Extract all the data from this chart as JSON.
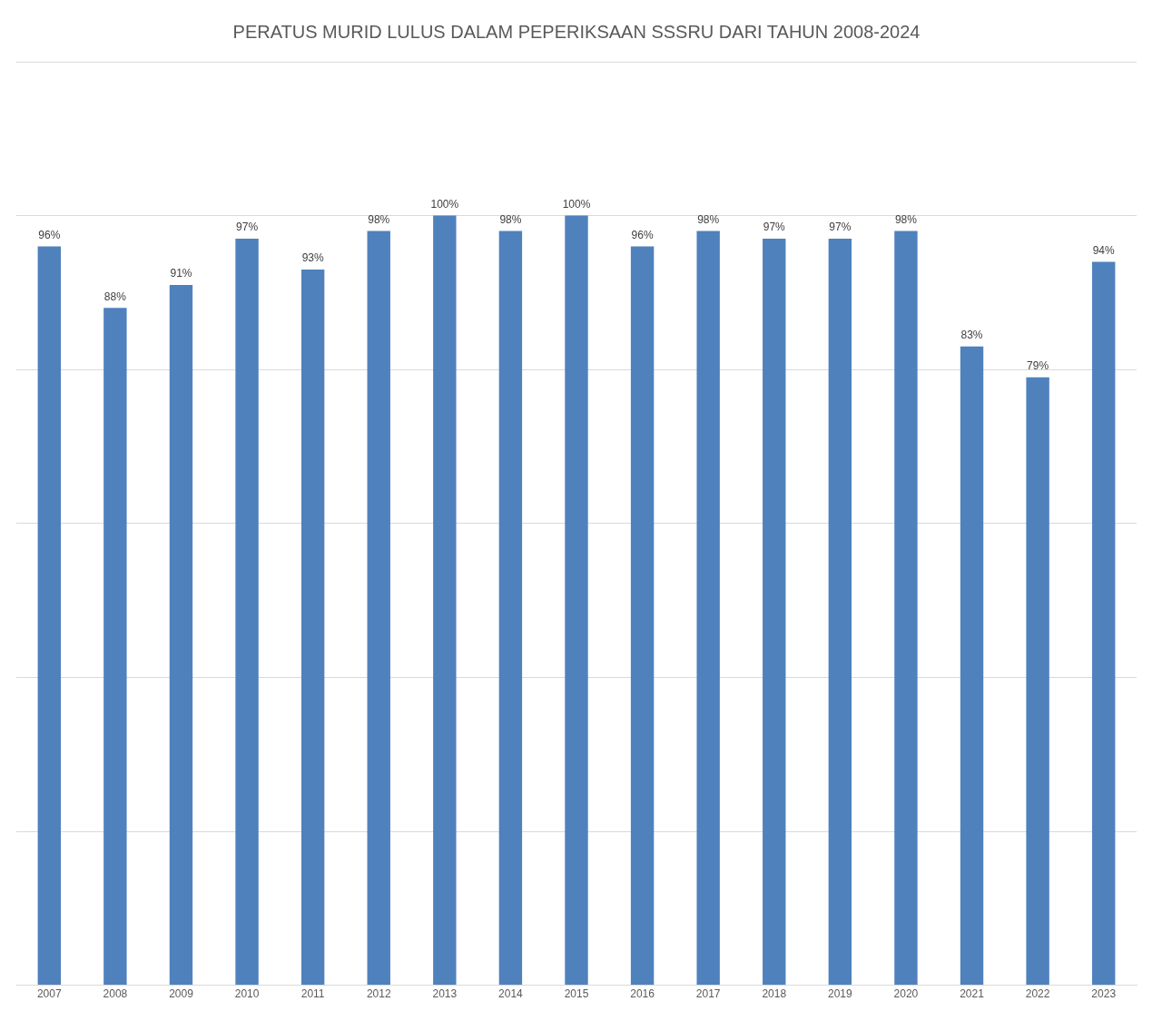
{
  "chart_data": {
    "type": "bar",
    "title": "PERATUS MURID LULUS DALAM PEPERIKSAAN SSSRU DARI TAHUN 2008-2024",
    "categories": [
      "2007",
      "2008",
      "2009",
      "2010",
      "2011",
      "2012",
      "2013",
      "2014",
      "2015",
      "2016",
      "2017",
      "2018",
      "2019",
      "2020",
      "2021",
      "2022",
      "2023"
    ],
    "values": [
      96,
      88,
      91,
      97,
      93,
      98,
      100,
      98,
      100,
      96,
      98,
      97,
      97,
      98,
      83,
      79,
      94
    ],
    "value_labels": [
      "96%",
      "88%",
      "91%",
      "97%",
      "93%",
      "98%",
      "100%",
      "98%",
      "100%",
      "96%",
      "98%",
      "97%",
      "97%",
      "98%",
      "83%",
      "79%",
      "94%"
    ],
    "color": "#4f81bd",
    "ylim": [
      0,
      120
    ],
    "yticks": [
      {
        "value": 0,
        "label": null
      },
      {
        "value": 20,
        "label": null
      },
      {
        "value": 40,
        "label": null
      },
      {
        "value": 60,
        "label": null
      },
      {
        "value": 80,
        "label": null
      },
      {
        "value": 100,
        "label": null
      },
      {
        "value": 120,
        "label": null
      }
    ],
    "tick_labels": "x",
    "grid": "y",
    "legend": false
  }
}
